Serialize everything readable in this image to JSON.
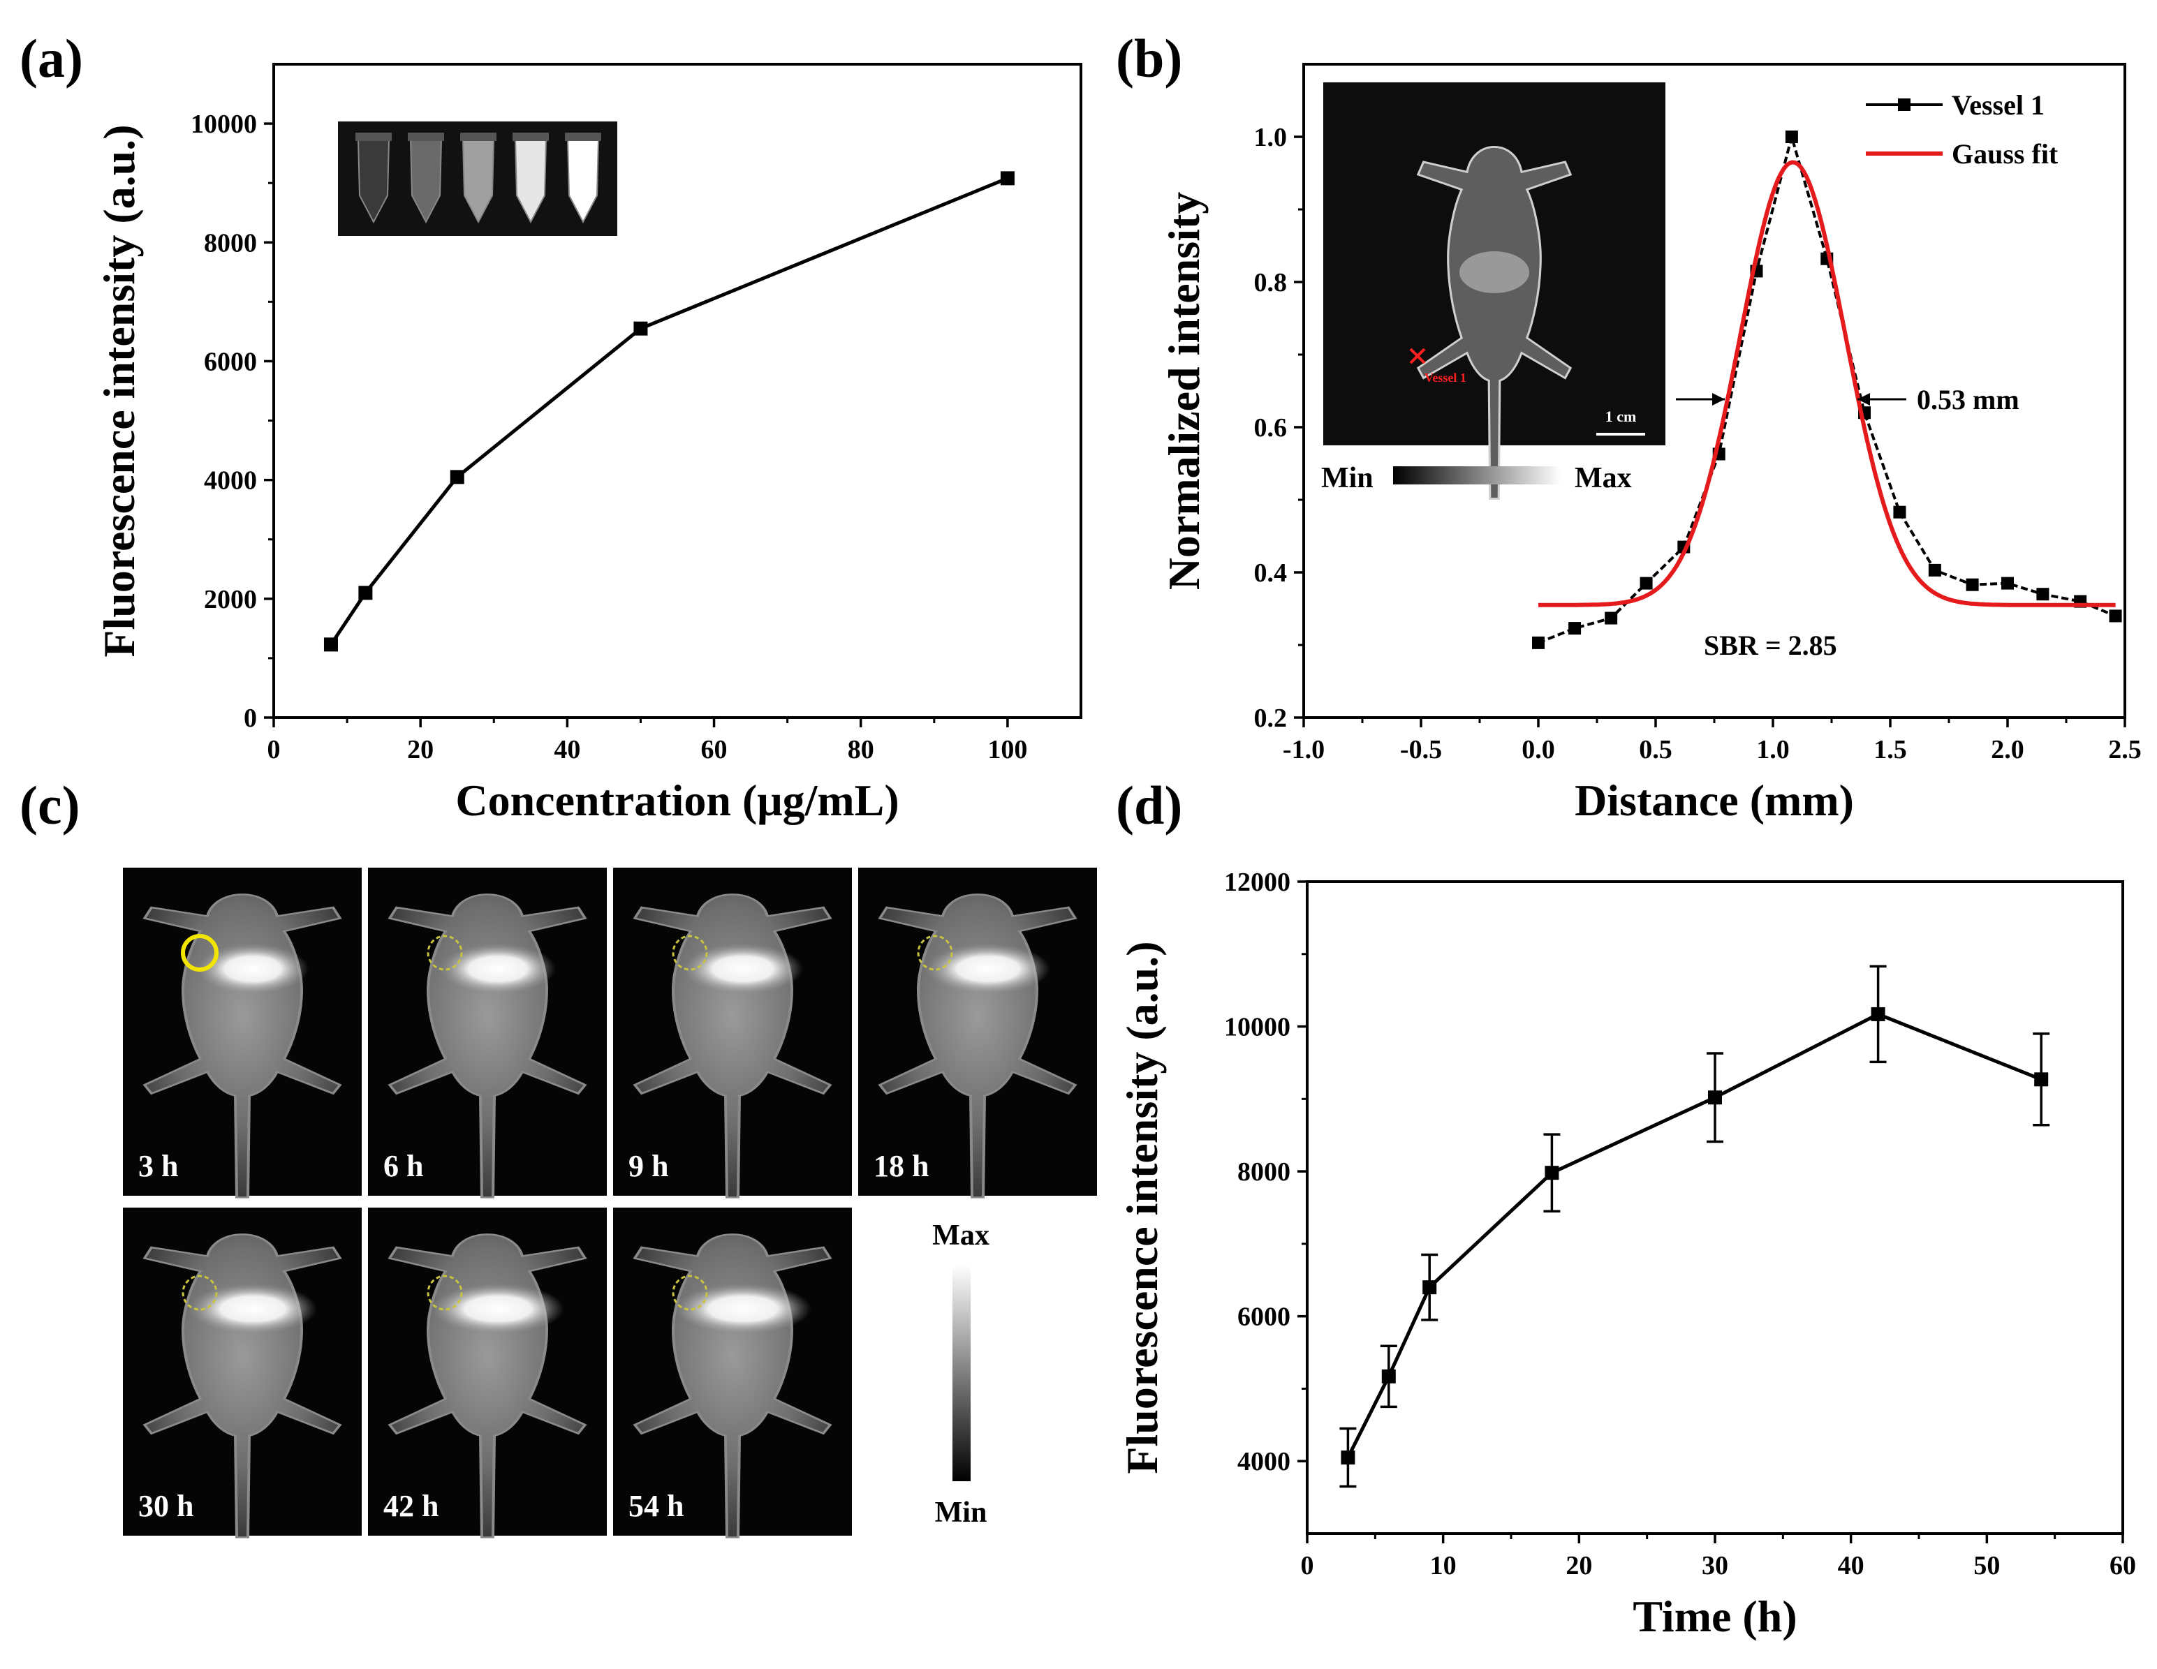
{
  "panels": {
    "a": "(a)",
    "b": "(b)",
    "c": "(c)",
    "d": "(d)"
  },
  "chart_data": [
    {
      "id": "a",
      "type": "line",
      "title": "",
      "xlabel": "Concentration (μg/mL)",
      "ylabel": "Fluorescence intensity (a.u.)",
      "xlim": [
        0,
        110
      ],
      "ylim": [
        0,
        11000
      ],
      "xticks": [
        0,
        20,
        40,
        60,
        80,
        100
      ],
      "yticks": [
        0,
        2000,
        4000,
        6000,
        8000,
        10000
      ],
      "x": [
        7.8,
        12.5,
        25,
        50,
        100
      ],
      "y": [
        1230,
        2100,
        4050,
        6550,
        9080
      ],
      "inset": "vial fluorescence image (5 tubes)"
    },
    {
      "id": "b",
      "type": "line",
      "xlabel": "Distance (mm)",
      "ylabel": "Normalized intensity",
      "xlim": [
        -1.0,
        2.5
      ],
      "ylim": [
        0.2,
        1.1
      ],
      "xticks": [
        -1.0,
        -0.5,
        0.0,
        0.5,
        1.0,
        1.5,
        2.0,
        2.5
      ],
      "yticks": [
        0.2,
        0.4,
        0.6,
        0.8,
        1.0
      ],
      "series": [
        {
          "name": "Vessel 1",
          "color": "#000000",
          "x": [
            0.0,
            0.155,
            0.31,
            0.46,
            0.62,
            0.77,
            0.93,
            1.08,
            1.23,
            1.39,
            1.54,
            1.69,
            1.85,
            2.0,
            2.15,
            2.31,
            2.46
          ],
          "y": [
            0.303,
            0.323,
            0.337,
            0.385,
            0.435,
            0.563,
            0.815,
            1.0,
            0.832,
            0.62,
            0.483,
            0.403,
            0.383,
            0.385,
            0.37,
            0.36,
            0.34
          ]
        },
        {
          "name": "Gauss fit",
          "color": "#e41a1c",
          "model": {
            "y0": 0.355,
            "A": 0.61,
            "xc": 1.085,
            "sigma": 0.225
          },
          "x_range": [
            0.0,
            2.46
          ]
        }
      ],
      "annotations": {
        "fwhm": "0.53 mm",
        "sbr": "SBR = 2.85",
        "vessel_tag": "Vessel 1",
        "scale_bar": "1 cm",
        "colorbar_min": "Min",
        "colorbar_max": "Max"
      }
    },
    {
      "id": "d",
      "type": "line",
      "xlabel": "Time (h)",
      "ylabel": "Fluorescence intensity (a.u.)",
      "xlim": [
        0,
        60
      ],
      "ylim": [
        3000,
        12000
      ],
      "xticks": [
        0,
        10,
        20,
        30,
        40,
        50,
        60
      ],
      "yticks": [
        4000,
        6000,
        8000,
        10000,
        12000
      ],
      "x": [
        3,
        6,
        9,
        18,
        30,
        42,
        54
      ],
      "y": [
        4050,
        5170,
        6400,
        7980,
        9020,
        10170,
        9270
      ],
      "error": [
        400,
        420,
        450,
        530,
        610,
        660,
        630
      ]
    }
  ],
  "panel_c": {
    "time_labels": [
      "3 h",
      "6 h",
      "9 h",
      "18 h",
      "30 h",
      "42 h",
      "54 h"
    ],
    "colorbar_max": "Max",
    "colorbar_min": "Min"
  }
}
